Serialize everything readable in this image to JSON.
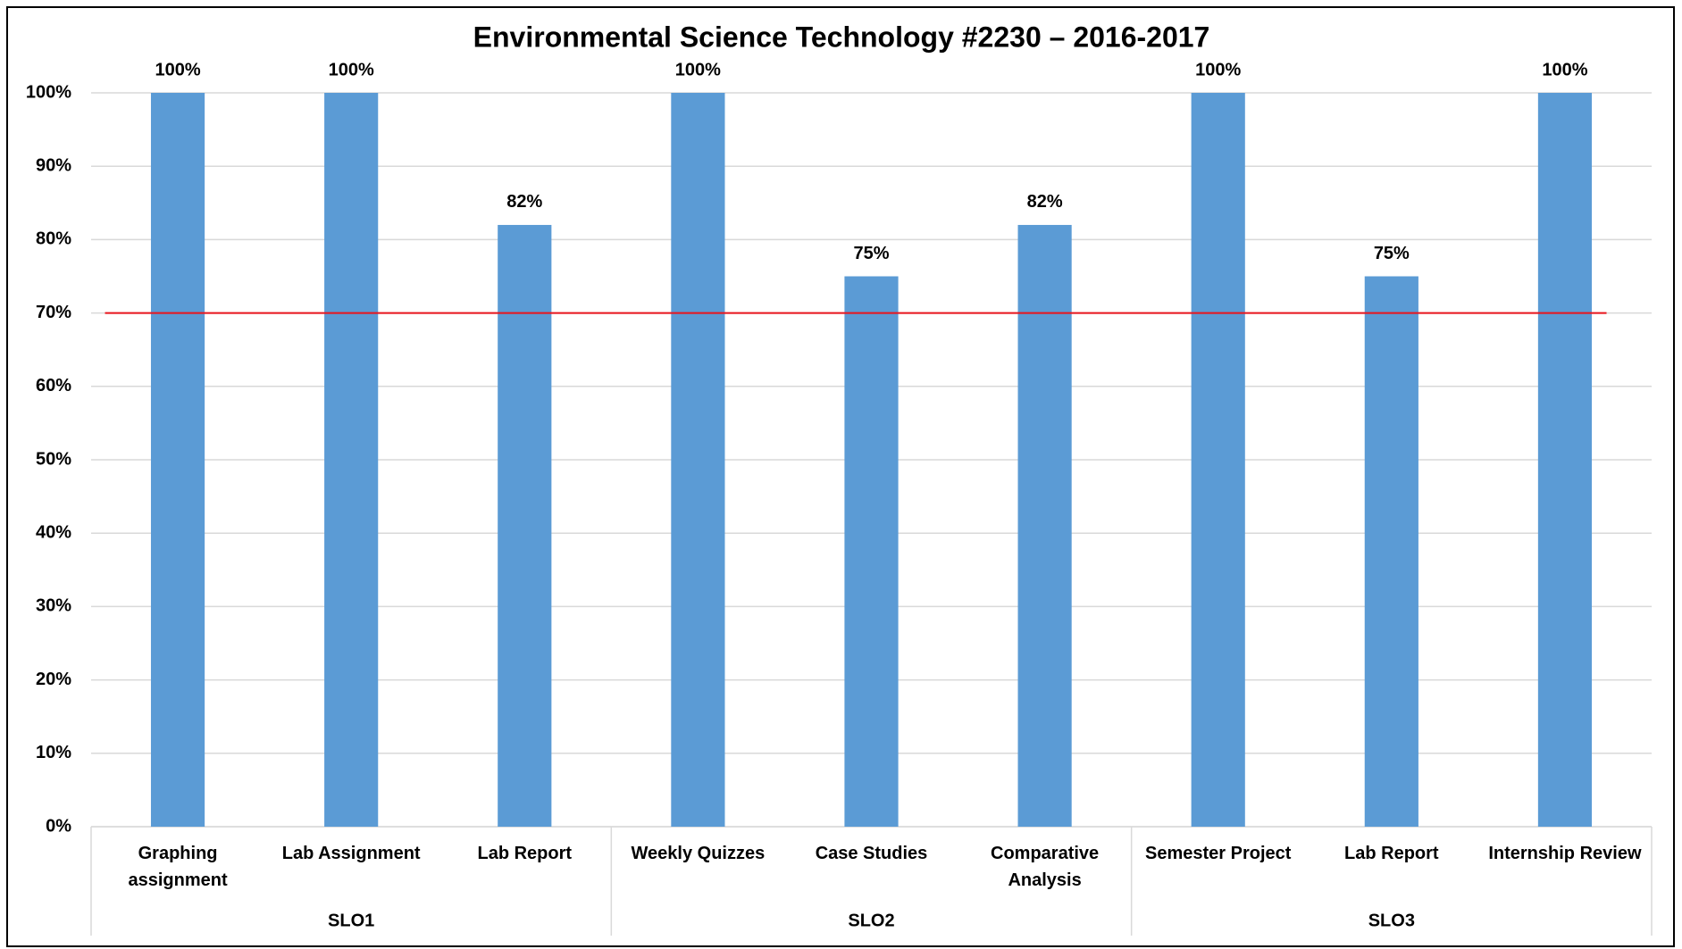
{
  "chart_data": {
    "type": "bar",
    "title": "Environmental Science Technology #2230 – 2016-2017",
    "categories": [
      "Graphing assignment",
      "Lab Assignment",
      "Lab Report",
      "Weekly Quizzes",
      "Case Studies",
      "Comparative Analysis",
      "Semester Project",
      "Lab Report",
      "Internship Review"
    ],
    "groups": [
      {
        "name": "SLO1",
        "size": 3
      },
      {
        "name": "SLO2",
        "size": 3
      },
      {
        "name": "SLO3",
        "size": 3
      }
    ],
    "values": [
      100,
      100,
      82,
      100,
      75,
      82,
      100,
      75,
      100
    ],
    "value_labels": [
      "100%",
      "100%",
      "82%",
      "100%",
      "75%",
      "82%",
      "100%",
      "75%",
      "100%"
    ],
    "color": "#5b9bd5",
    "reference_line": {
      "value": 70,
      "color": "#e8141c"
    },
    "ylim": [
      0,
      100
    ],
    "yticks": [
      {
        "value": 0,
        "label": "0%"
      },
      {
        "value": 10,
        "label": "10%"
      },
      {
        "value": 20,
        "label": "20%"
      },
      {
        "value": 30,
        "label": "30%"
      },
      {
        "value": 40,
        "label": "40%"
      },
      {
        "value": 50,
        "label": "50%"
      },
      {
        "value": 60,
        "label": "60%"
      },
      {
        "value": 70,
        "label": "70%"
      },
      {
        "value": 80,
        "label": "80%"
      },
      {
        "value": 90,
        "label": "90%"
      },
      {
        "value": 100,
        "label": "100%"
      }
    ],
    "grid": true
  }
}
